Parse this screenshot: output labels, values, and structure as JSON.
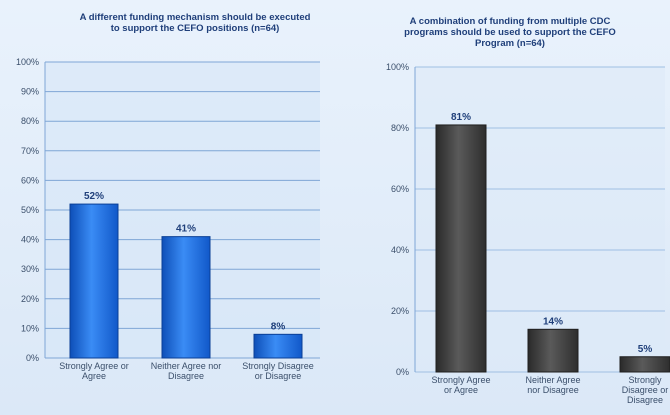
{
  "chart_data": [
    {
      "type": "bar",
      "title": "A different funding mechanism should be executed to support the CEFO positions (n=64)",
      "title_lines": [
        "A different funding mechanism should be executed",
        "to support the CEFO positions (n=64)"
      ],
      "categories": [
        "Strongly Agree or Agree",
        "Neither Agree nor Disagree",
        "Strongly Disagree or Disagree"
      ],
      "category_lines": [
        [
          "Strongly Agree or",
          "Agree"
        ],
        [
          "Neither Agree nor",
          "Disagree"
        ],
        [
          "Strongly Disagree",
          "or Disagree"
        ]
      ],
      "values": [
        52,
        41,
        8
      ],
      "value_labels": [
        "52%",
        "41%",
        "8%"
      ],
      "yticks": [
        0,
        10,
        20,
        30,
        40,
        50,
        60,
        70,
        80,
        90,
        100
      ],
      "ytick_labels": [
        "0%",
        "10%",
        "20%",
        "30%",
        "40%",
        "50%",
        "60%",
        "70%",
        "80%",
        "90%",
        "100%"
      ],
      "ylim": [
        0,
        100
      ],
      "grid": true,
      "bar_color": "#1f6fe0"
    },
    {
      "type": "bar",
      "title": "A combination of funding from multiple CDC programs should be used to support the CEFO Program (n=64)",
      "title_lines": [
        "A combination of funding from multiple CDC",
        "programs should be used to support the CEFO",
        "Program (n=64)"
      ],
      "categories": [
        "Strongly Agree or Agree",
        "Neither Agree nor Disagree",
        "Strongly Disagree or Disagree"
      ],
      "category_lines": [
        [
          "Strongly Agree",
          "or Agree"
        ],
        [
          "Neither Agree",
          "nor Disagree"
        ],
        [
          "Strongly",
          "Disagree or",
          "Disagree"
        ]
      ],
      "values": [
        81,
        14,
        5
      ],
      "value_labels": [
        "81%",
        "14%",
        "5%"
      ],
      "yticks": [
        0,
        20,
        40,
        60,
        80,
        100
      ],
      "ytick_labels": [
        "0%",
        "20%",
        "40%",
        "60%",
        "80%",
        "100%"
      ],
      "ylim": [
        0,
        100
      ],
      "grid": true,
      "bar_color": "#3d3d3d"
    }
  ]
}
